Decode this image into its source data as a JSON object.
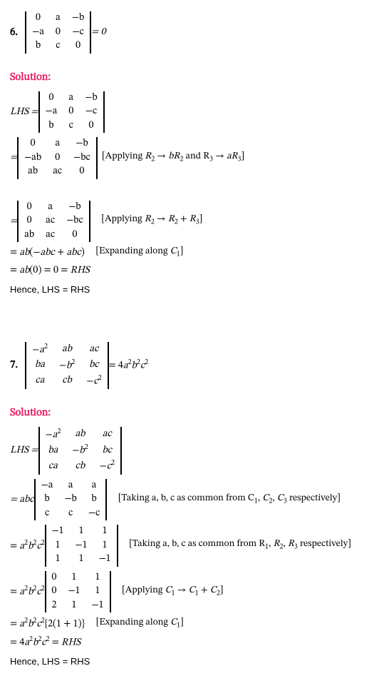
{
  "colors": {
    "background": "#ffffff",
    "text": "#000000",
    "solution_heading": "#e91e63"
  },
  "typography": {
    "math_font": "Cambria Math / serif",
    "body_font": "Arial / sans-serif",
    "base_fontsize_pt": 11,
    "qnum_fontsize_pt": 11,
    "qnum_weight": "bold",
    "solution_fontsize_pt": 11,
    "solution_weight": "bold"
  },
  "q6": {
    "number": "6.",
    "problem": {
      "matrix": [
        [
          "0",
          "a",
          "−b"
        ],
        [
          "−a",
          "0",
          "−c"
        ],
        [
          "b",
          "c",
          "0"
        ]
      ],
      "rhs": " = 0"
    },
    "solution_label": "Solution:",
    "steps": [
      {
        "prefix": "LHS = ",
        "matrix": [
          [
            "0",
            "a",
            "−b"
          ],
          [
            "−a",
            "0",
            "−c"
          ],
          [
            "b",
            "c",
            "0"
          ]
        ],
        "suffix": ""
      },
      {
        "prefix": "= ",
        "matrix": [
          [
            "0",
            "a",
            "−b"
          ],
          [
            "−ab",
            "0",
            "−bc"
          ],
          [
            "ab",
            "ac",
            "0"
          ]
        ],
        "suffix": " [Applying R₂ → bR₂ and R₃ → aR₃]"
      },
      {
        "prefix": "= ",
        "matrix": [
          [
            "0",
            "a",
            "−b"
          ],
          [
            "0",
            "ac",
            "−bc"
          ],
          [
            "ab",
            "ac",
            "0"
          ]
        ],
        "suffix": "   [Applying R₂ → R₂ + R₃]"
      },
      {
        "line": "= ab(−abc + abc)   [Expanding along C₁]"
      },
      {
        "line": "= ab(0) = 0 = RHS"
      }
    ],
    "conclusion": "Hence, LHS = RHS"
  },
  "q7": {
    "number": "7.",
    "problem": {
      "matrix": [
        [
          "−a²",
          "ab",
          "ac"
        ],
        [
          "ba",
          "−b²",
          "bc"
        ],
        [
          "ca",
          "cb",
          "−c²"
        ]
      ],
      "rhs": " = 4a²b²c²"
    },
    "solution_label": "Solution:",
    "steps": [
      {
        "prefix": "LHS = ",
        "matrix": [
          [
            "−a²",
            "ab",
            "ac"
          ],
          [
            "ba",
            "−b²",
            "bc"
          ],
          [
            "ca",
            "cb",
            "−c²"
          ]
        ],
        "suffix": ""
      },
      {
        "prefix": "= abc ",
        "matrix": [
          [
            "−a",
            "a",
            "a"
          ],
          [
            "b",
            "−b",
            "b"
          ],
          [
            "c",
            "c",
            "−c"
          ]
        ],
        "suffix": "   [Taking a, b, c as common from C₁, C₂, C₃ respectively]"
      },
      {
        "prefix": "= a²b²c² ",
        "matrix": [
          [
            "−1",
            "1",
            "1"
          ],
          [
            "1",
            "−1",
            "1"
          ],
          [
            "1",
            "1",
            "−1"
          ]
        ],
        "suffix": "   [Taking a, b, c as common from R₁, R₂, R₃ respectively]"
      },
      {
        "prefix": "= a²b²c² ",
        "matrix": [
          [
            "0",
            "1",
            "1"
          ],
          [
            "0",
            "−1",
            "1"
          ],
          [
            "2",
            "1",
            "−1"
          ]
        ],
        "suffix": "   [Applying C₁ → C₁ + C₂]"
      },
      {
        "line": "= a²b²c²{2(1 + 1)}   [Expanding along C₁]"
      },
      {
        "line": "= 4a²b²c² = RHS"
      }
    ],
    "conclusion": "Hence, LHS = RHS"
  }
}
